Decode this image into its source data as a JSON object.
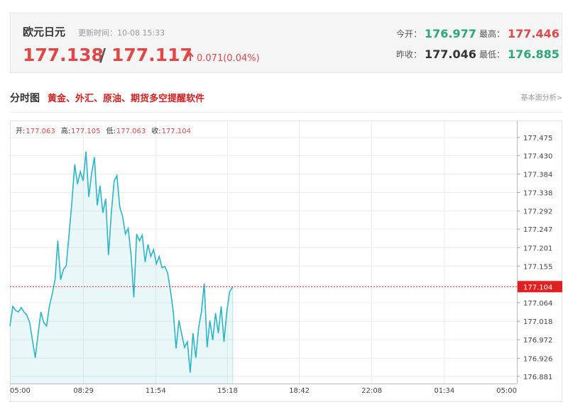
{
  "header": {
    "title": "欧元日元",
    "update_time": "更新时间：10-08 15:33",
    "bid": 177.138,
    "separator": "/",
    "ask": 177.117,
    "change": "0.071(0.04%)",
    "stats": [
      {
        "label": "今开：",
        "value": 176.977,
        "color": "#2aa876"
      },
      {
        "label": "最高：",
        "value": 177.446,
        "color": "#e04848"
      },
      {
        "label": "昨收：",
        "value": 177.046,
        "color": "#333333"
      },
      {
        "label": "最低：",
        "value": 176.885,
        "color": "#2aa876"
      }
    ]
  },
  "section": {
    "title": "分时图",
    "promo": "黄金、外汇、原油、期货多空提醒软件",
    "link": "基本面分析>"
  },
  "chart_data": {
    "type": "area",
    "ohlc": [
      {
        "label": "开:",
        "value": 177.063
      },
      {
        "label": "高:",
        "value": 177.105
      },
      {
        "label": "低:",
        "value": 177.063
      },
      {
        "label": "收:",
        "value": 177.104
      }
    ],
    "x": [
      "05:00",
      "05:08",
      "05:16",
      "05:24",
      "05:32",
      "05:40",
      "05:48",
      "05:56",
      "06:04",
      "06:12",
      "06:20",
      "06:28",
      "06:36",
      "06:44",
      "06:52",
      "07:00",
      "07:08",
      "07:16",
      "07:24",
      "07:32",
      "07:40",
      "07:48",
      "07:56",
      "08:04",
      "08:12",
      "08:20",
      "08:28",
      "08:36",
      "08:44",
      "08:52",
      "09:00",
      "09:08",
      "09:16",
      "09:24",
      "09:32",
      "09:40",
      "09:48",
      "09:56",
      "10:04",
      "10:12",
      "10:20",
      "10:28",
      "10:36",
      "10:44",
      "10:52",
      "11:00",
      "11:08",
      "11:16",
      "11:24",
      "11:32",
      "11:40",
      "11:48",
      "11:56",
      "12:04",
      "12:12",
      "12:20",
      "12:28",
      "12:36",
      "12:44",
      "12:52",
      "13:00",
      "13:08",
      "13:16",
      "13:24",
      "13:32",
      "13:40",
      "13:48",
      "13:56",
      "14:04",
      "14:12",
      "14:20",
      "14:28",
      "14:36",
      "14:44",
      "14:52",
      "15:00",
      "15:08",
      "15:16",
      "15:24",
      "15:33"
    ],
    "series": [
      {
        "name": "EURJPY",
        "color": "#2bb5c8",
        "values": [
          177.006,
          177.055,
          177.045,
          177.041,
          177.052,
          177.041,
          177.033,
          177.015,
          176.971,
          176.927,
          176.988,
          177.041,
          177.015,
          177.006,
          177.055,
          177.085,
          177.121,
          177.218,
          177.121,
          177.147,
          177.156,
          177.235,
          177.315,
          177.408,
          177.359,
          177.39,
          177.367,
          177.44,
          177.327,
          177.385,
          177.426,
          177.306,
          177.355,
          177.288,
          177.323,
          177.182,
          177.288,
          177.367,
          177.38,
          177.302,
          177.279,
          177.235,
          177.249,
          177.182,
          177.077,
          177.235,
          177.218,
          177.232,
          177.165,
          177.209,
          177.179,
          177.196,
          177.161,
          177.179,
          177.151,
          177.154,
          177.138,
          177.094,
          177.041,
          176.95,
          177.02,
          176.985,
          176.953,
          176.967,
          176.89,
          176.988,
          176.927,
          177.003,
          177.041,
          177.112,
          176.953,
          177.02,
          176.971,
          177.038,
          176.988,
          177.055,
          176.967,
          177.041,
          177.091,
          177.104
        ]
      }
    ],
    "ylim": [
      176.863,
      177.517
    ],
    "yticks": [
      176.881,
      176.926,
      176.972,
      177.018,
      177.064,
      177.155,
      177.201,
      177.247,
      177.292,
      177.338,
      177.384,
      {
        "value": 177.43,
        "label": "177.430"
      },
      177.475
    ],
    "xticks": [
      "05:00",
      "08:29",
      "11:54",
      "15:18",
      "18:42",
      "22:08",
      "01:34",
      "05:00"
    ],
    "price_line": 177.104,
    "price_line_color": "#e02020",
    "grid": true
  }
}
